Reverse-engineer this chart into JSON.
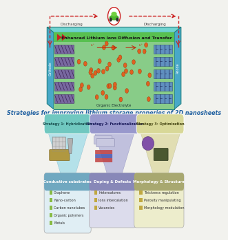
{
  "title": "Strategies for improving lithium storage properies of 2D nanosheets",
  "title_color": "#2060a0",
  "title_fontsize": 5.8,
  "strategies": [
    {
      "label": "Strategy 1: Hybridization",
      "bg": "#70c8c0",
      "text_color": "#1a5050"
    },
    {
      "label": "Strategy 2: Functionalization",
      "bg": "#9898cc",
      "text_color": "#1a1a5a"
    },
    {
      "label": "Strategy 3: Optimization",
      "bg": "#d8d898",
      "text_color": "#4a4a18"
    }
  ],
  "boxes": [
    {
      "title": "Conductive substrates",
      "title_bg": "#70a8c0",
      "box_bg_top": "#98c8d8",
      "box_bg_bot": "#e0eef4",
      "items": [
        "Graphene",
        "Nano-carbon",
        "Carbon nanotubes",
        "Organic polymers",
        "Metals"
      ],
      "bullet_color": "#88bb44"
    },
    {
      "title": "Doping & Defects",
      "title_bg": "#8888b8",
      "box_bg_top": "#a0a0cc",
      "box_bg_bot": "#dcdcec",
      "items": [
        "Heteroatoms",
        "Ions intercalation",
        "Vacancies"
      ],
      "bullet_color": "#c0a840"
    },
    {
      "title": "Morphology & Structure",
      "title_bg": "#a8a870",
      "box_bg_top": "#c0c088",
      "box_bg_bot": "#ededcc",
      "items": [
        "Thickness regulation",
        "Porosity manipulating",
        "Morphology modulation"
      ],
      "bullet_color": "#c0a840"
    }
  ],
  "battery_green": "#58c050",
  "battery_teal": "#50c0b8",
  "battery_side_blue": "#48a8c8",
  "battery_text": "Enhanced Lithium Ions Diffusion and Transfer",
  "electrolyte_text": "Organic Electrolyte",
  "cathode_text": "Cathode",
  "anode_text": "Anode",
  "discharging_text": "Discharging",
  "bg_color": "#f2f2ee",
  "arrow_color": "#cc2020",
  "li_color": "#e06020",
  "cathode_purple": "#807090",
  "anode_blue": "#5888c0"
}
